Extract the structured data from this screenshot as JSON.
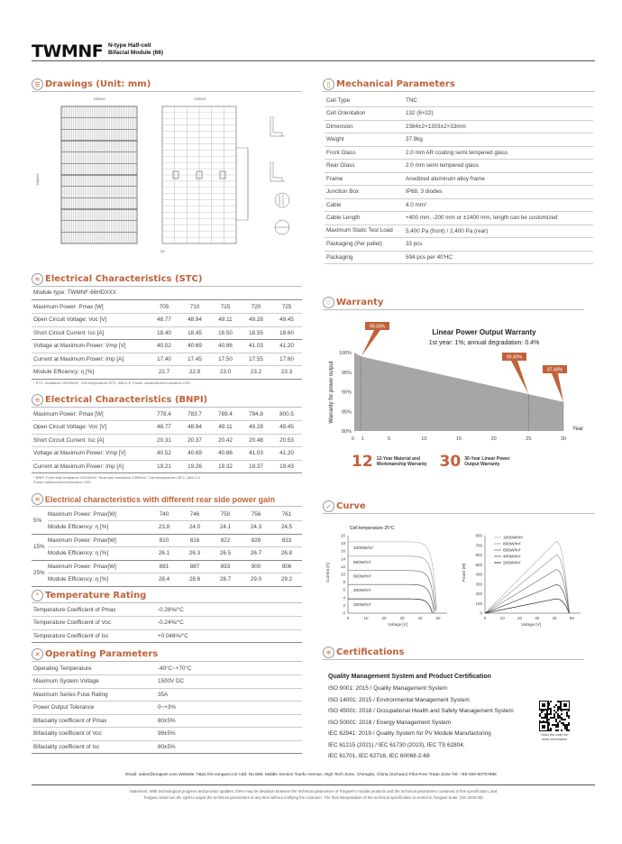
{
  "header": {
    "title": "TWMNF",
    "subtitle_line1": "N-type Half-cell",
    "subtitle_line2": "Bifacial Module (66)"
  },
  "sections": {
    "drawings": "Drawings (Unit: mm)",
    "mechanical": "Mechanical Parameters",
    "stc": "Electrical Characteristics (STC)",
    "bnpi": "Electrical Characteristics (BNPI)",
    "rear": "Electrical characteristics with different rear side power gain",
    "temperature": "Temperature Rating",
    "operating": "Operating Parameters",
    "warranty": "Warranty",
    "curve": "Curve",
    "certifications": "Certifications"
  },
  "drawings": {
    "width_label": "1303±2",
    "height_label": "2384±2",
    "thickness_label": "33"
  },
  "mechanical": [
    [
      "Cell Type",
      "TNC"
    ],
    [
      "Cell Orientation",
      "132 (6×22)"
    ],
    [
      "Dimension",
      "2384±2×1303±2×33mm"
    ],
    [
      "Weight",
      "37.9kg"
    ],
    [
      "Front Glass",
      "2.0 mm AR coating semi tempered glass"
    ],
    [
      "Rear Glass",
      "2.0 mm semi tempered glass"
    ],
    [
      "Frame",
      "Anodized aluminum alloy frame"
    ],
    [
      "Junction Box",
      "IP68, 3 diodes"
    ],
    [
      "Cable",
      "4.0 mm²"
    ],
    [
      "Cable Length",
      "+400 mm, -200 mm or ±1400 mm, length can be customized"
    ],
    [
      "Maximum Static Test Load",
      "5,400 Pa (front) / 2,400 Pa (rear)"
    ],
    [
      "Packaging (Per pallet)",
      "33 pcs"
    ],
    [
      "Packaging",
      "594 pcs per 40'HC"
    ]
  ],
  "stc": {
    "module_type": "Module type: TWMNF-66HDXXX",
    "rows": [
      [
        "Maximum Power: Pmax [W]",
        "705",
        "710",
        "715",
        "720",
        "725"
      ],
      [
        "Open Circuit Voltage: Voc [V]",
        "48.77",
        "48.94",
        "49.11",
        "49.28",
        "49.45"
      ],
      [
        "Short Circuit Current: Isc [A]",
        "18.40",
        "18.45",
        "18.50",
        "18.55",
        "18.60"
      ],
      [
        "Voltage at Maximum Power: Vmp [V]",
        "40.52",
        "40.69",
        "40.86",
        "41.03",
        "41.20"
      ],
      [
        "Current at Maximum Power: Imp [A]",
        "17.40",
        "17.45",
        "17.50",
        "17.55",
        "17.60"
      ],
      [
        "Module Efficiency: η [%]",
        "22.7",
        "22.9",
        "23.0",
        "23.2",
        "23.3"
      ]
    ],
    "note": "* STC: Irradiance 1000W/m², Cell temperature 25°C, AM=1.5, Power measurement tolerance ±3%"
  },
  "bnpi": {
    "rows": [
      [
        "Maximum Power: Pmax [W]",
        "778.4",
        "783.7",
        "789.4",
        "794.8",
        "800.5"
      ],
      [
        "Open Circuit Voltage: Voc [V]",
        "48.77",
        "48.94",
        "49.11",
        "49.28",
        "49.45"
      ],
      [
        "Short Circuit Current: Isc [A]",
        "20.31",
        "20.37",
        "20.42",
        "20.48",
        "20.53"
      ],
      [
        "Voltage at Maximum Power: Vmp [V]",
        "40.52",
        "40.69",
        "40.86",
        "41.03",
        "41.20"
      ],
      [
        "Current at Maximum Power: Imp [A]",
        "19.21",
        "19.26",
        "19.32",
        "19.37",
        "19.43"
      ]
    ],
    "note_line1": "* BNPI: Front side irradiance 1000W/m², Rear side irradiance 135W/m², Cell temperature=25°C, AM=1.5",
    "note_line2": "Power measurement tolerance ±3%"
  },
  "rear": [
    {
      "gain": "5%",
      "rows": [
        [
          "Maximum Power: Pmax[W]",
          "740",
          "746",
          "750",
          "756",
          "761"
        ],
        [
          "Module Efficiency: η [%]",
          "23.8",
          "24.0",
          "24.1",
          "24.3",
          "24.5"
        ]
      ]
    },
    {
      "gain": "15%",
      "rows": [
        [
          "Maximum Power: Pmax[W]",
          "810",
          "816",
          "822",
          "828",
          "833"
        ],
        [
          "Module Efficiency: η [%]",
          "26.1",
          "26.3",
          "26.5",
          "26.7",
          "26.8"
        ]
      ]
    },
    {
      "gain": "25%",
      "rows": [
        [
          "Maximum Power: Pmax[W]",
          "881",
          "887",
          "893",
          "900",
          "906"
        ],
        [
          "Module Efficiency: η [%]",
          "28.4",
          "28.6",
          "28.7",
          "29.0",
          "29.2"
        ]
      ]
    }
  ],
  "temperature": [
    [
      "Temperature Coefficient of Pmax",
      "-0.28%/°C"
    ],
    [
      "Temperature Coefficient of Voc",
      "-0.24%/°C"
    ],
    [
      "Temperature Coefficient of Isc",
      "+0.046%/°C"
    ]
  ],
  "operating": [
    [
      "Operating Temperature",
      "-40°C~+70°C"
    ],
    [
      "Maximum System Voltage",
      "1500V DC"
    ],
    [
      "Maximum Series Fuse Rating",
      "35A"
    ],
    [
      "Power Output Tolerance",
      "0~+3%"
    ],
    [
      "Bifaciality coefficient of Pmax",
      "80±5%"
    ],
    [
      "Bifaciality coefficient of Voc",
      "98±5%"
    ],
    [
      "Bifaciality coefficient of Isc",
      "80±5%"
    ]
  ],
  "warranty": {
    "badge1_num": "12",
    "badge1_text1": "12-Year Material and",
    "badge1_text2": "Workmanship Warranty",
    "badge2_num": "30",
    "badge2_text1": "30-Year Linear Power",
    "badge2_text2": "Output Warranty"
  },
  "chart_data": [
    {
      "type": "area",
      "title": "Linear Power Output Warranty",
      "subtitle": "1st year: 1%; annual degradation: 0.4%",
      "xlabel": "Year",
      "ylabel": "Warranty for power output",
      "x": [
        0,
        1,
        25,
        30
      ],
      "y": [
        100,
        99,
        89.4,
        87.4
      ],
      "xlim": [
        0,
        30
      ],
      "ylim": [
        80,
        100
      ],
      "xticks": [
        "0",
        "1",
        "5",
        "10",
        "15",
        "20",
        "25",
        "30"
      ],
      "yticks": [
        "80%",
        "85%",
        "90%",
        "95%",
        "100%"
      ],
      "annotations": [
        {
          "x": 1,
          "label": "99.00%"
        },
        {
          "x": 25,
          "label": "89.40%"
        },
        {
          "x": 30,
          "label": "87.40%"
        }
      ],
      "color": "#a6a6a6",
      "accent": "#c0623a"
    },
    {
      "type": "line",
      "title": "Cell temperature 25°C",
      "xlabel": "Voltage [V]",
      "ylabel": "Current [A]",
      "xlim": [
        0,
        55
      ],
      "ylim": [
        0,
        20
      ],
      "xticks": [
        "0",
        "10",
        "20",
        "30",
        "40",
        "50"
      ],
      "yticks": [
        "0",
        "2",
        "4",
        "6",
        "8",
        "10",
        "12",
        "14",
        "16",
        "18",
        "20"
      ],
      "series": [
        {
          "name": "1000W/m²",
          "isc": 18.4,
          "voc": 49.3
        },
        {
          "name": "800W/m²",
          "isc": 14.7,
          "voc": 48.9
        },
        {
          "name": "600W/m²",
          "isc": 11.0,
          "voc": 48.4
        },
        {
          "name": "400W/m²",
          "isc": 7.4,
          "voc": 47.8
        },
        {
          "name": "200W/m²",
          "isc": 3.7,
          "voc": 46.8
        }
      ]
    },
    {
      "type": "line",
      "xlabel": "Voltage [V]",
      "ylabel": "Power [W]",
      "xlim": [
        0,
        55
      ],
      "ylim": [
        0,
        800
      ],
      "xticks": [
        "0",
        "10",
        "20",
        "30",
        "40",
        "50"
      ],
      "yticks": [
        "0",
        "100",
        "200",
        "300",
        "400",
        "500",
        "600",
        "700",
        "800"
      ],
      "series": [
        {
          "name": "1000W/m²",
          "pmax": 740
        },
        {
          "name": "800W/m²",
          "pmax": 600
        },
        {
          "name": "600W/m²",
          "pmax": 450
        },
        {
          "name": "400W/m²",
          "pmax": 295
        },
        {
          "name": "200W/m²",
          "pmax": 148
        }
      ]
    }
  ],
  "certifications": {
    "heading": "Quality Management System and Product Certification",
    "lines": [
      "ISO 9001: 2015 / Quality Management System",
      "ISO 14001: 2015 / Environmental Management System",
      "ISO 45001: 2018 / Occupational Health and Safety Management System",
      "ISO 50001: 2018 / Energy Management System",
      "IEC 62941: 2019 / Quality System for PV Module Manufacturing",
      "IEC 61215 (2021) / IEC 61730 (2023), IEC TS 62804,",
      "IEC 61701, IEC 62716, IEC 60068-2-68"
    ],
    "qr_caption1": "Scan the code for",
    "qr_caption2": "more information"
  },
  "footer": {
    "contact": "Email: sales@tongwei.com    Website: https://en.tongwei.cn/    Add: No.588, Middle Section Tianfu Avenue, High Tech Zone, Chengdu, China (Sichuan) Pilot Free Trade Zone    Tel: +86-028-60707985",
    "statement1": "Statement: With technological progress and product updates, there may be deviation between the technical parameters of Tongwei's module products and the technical parameters contained in this specification, and",
    "statement2": "Tongwei Solar has the right to adjust the technical parameters at any time without notifying the customer. The final interpretation of the technical specification is vested in Tongwei Solar. (Ver.2025-05)"
  }
}
